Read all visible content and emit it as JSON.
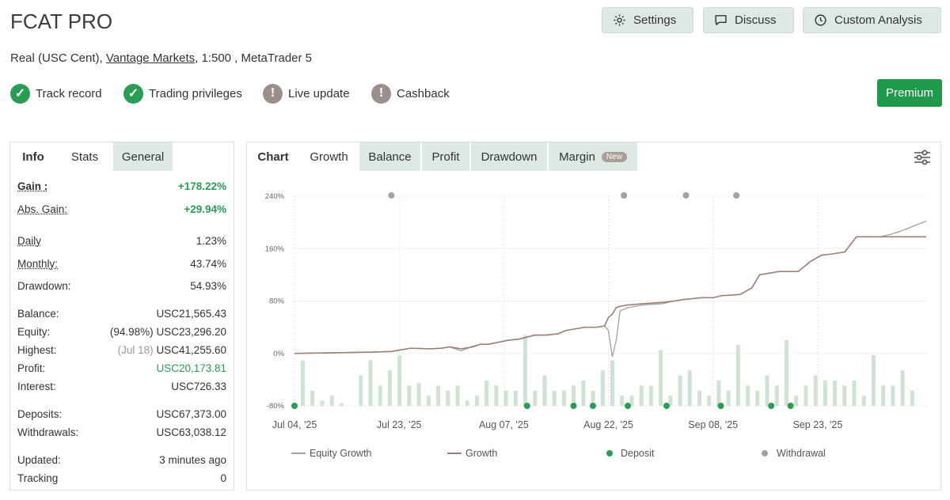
{
  "header": {
    "title": "FCAT PRO",
    "subtitle_pre": "Real (USC Cent), ",
    "broker": "Vantage Markets",
    "subtitle_post": ", 1:500 , MetaTrader 5"
  },
  "top_buttons": {
    "settings": "Settings",
    "discuss": "Discuss",
    "custom_analysis": "Custom Analysis"
  },
  "badges": {
    "track_record": "Track record",
    "trading_privileges": "Trading privileges",
    "live_update": "Live update",
    "cashback": "Cashback"
  },
  "premium": "Premium",
  "left_tabs": {
    "info": "Info",
    "stats": "Stats",
    "general": "General"
  },
  "stats": {
    "gain_label": "Gain :",
    "gain_value": "+178.22%",
    "abs_gain_label": "Abs. Gain:",
    "abs_gain_value": "+29.94%",
    "daily_label": "Daily",
    "daily_value": "1.23%",
    "monthly_label": "Monthly:",
    "monthly_value": "43.74%",
    "drawdown_label": "Drawdown:",
    "drawdown_value": "54.93%",
    "balance_label": "Balance:",
    "balance_value": "USC21,565.43",
    "equity_label": "Equity:",
    "equity_pct": "(94.98%)",
    "equity_value": "USC23,296.20",
    "highest_label": "Highest:",
    "highest_date": "(Jul 18)",
    "highest_value": "USC41,255.60",
    "profit_label": "Profit:",
    "profit_value": "USC20,173.81",
    "interest_label": "Interest:",
    "interest_value": "USC726.33",
    "deposits_label": "Deposits:",
    "deposits_value": "USC67,373.00",
    "withdrawals_label": "Withdrawals:",
    "withdrawals_value": "USC63,038.12",
    "updated_label": "Updated:",
    "updated_value": "3 minutes ago",
    "tracking_label": "Tracking",
    "tracking_value": "0"
  },
  "chart_tabs": {
    "chart": "Chart",
    "growth": "Growth",
    "balance": "Balance",
    "profit": "Profit",
    "drawdown": "Drawdown",
    "margin": "Margin",
    "new_badge": "New"
  },
  "chart_data": {
    "type": "line",
    "ylim": [
      -80,
      240
    ],
    "y_ticks": [
      "240%",
      "160%",
      "80%",
      "0%",
      "-80%"
    ],
    "x_ticks": [
      "Jul 04, '25",
      "Jul 23, '25",
      "Aug 07, '25",
      "Aug 22, '25",
      "Sep 08, '25",
      "Sep 23, '25"
    ],
    "grid": true,
    "legend_position": "bottom",
    "series": [
      {
        "name": "Equity Growth",
        "x": [
          0,
          10,
          20,
          25,
          30,
          35,
          38,
          40,
          43,
          46,
          48,
          50,
          55,
          58,
          60,
          62,
          65,
          68,
          70,
          75,
          78,
          80,
          81,
          82,
          83,
          84,
          86,
          88,
          90,
          95,
          98,
          100,
          105,
          108,
          110,
          115,
          118,
          120,
          125,
          128,
          130,
          133,
          136,
          139,
          142,
          145,
          148,
          151,
          154,
          157,
          160,
          163
        ],
        "y": [
          0,
          1,
          2,
          3,
          8,
          7,
          8,
          10,
          4,
          11,
          14,
          14,
          20,
          22,
          25,
          28,
          28,
          30,
          35,
          40,
          40,
          42,
          35,
          -5,
          20,
          65,
          70,
          72,
          74,
          76,
          80,
          82,
          85,
          85,
          88,
          90,
          100,
          120,
          125,
          125,
          125,
          140,
          150,
          152,
          155,
          178,
          178,
          178,
          182,
          188,
          195,
          202
        ]
      },
      {
        "name": "Growth",
        "x": [
          0,
          10,
          20,
          25,
          30,
          35,
          38,
          40,
          43,
          46,
          48,
          50,
          55,
          58,
          60,
          62,
          65,
          68,
          70,
          75,
          78,
          80,
          81,
          82,
          83,
          84,
          86,
          88,
          90,
          95,
          98,
          100,
          105,
          108,
          110,
          115,
          118,
          120,
          125,
          128,
          130,
          133,
          136,
          139,
          142,
          145,
          148,
          151,
          154,
          157,
          160,
          163
        ],
        "y": [
          0,
          1,
          2,
          3,
          8,
          7,
          8,
          10,
          7,
          10,
          14,
          14,
          20,
          22,
          25,
          28,
          28,
          30,
          35,
          40,
          40,
          42,
          55,
          60,
          70,
          72,
          74,
          75,
          76,
          78,
          80,
          82,
          85,
          85,
          88,
          90,
          100,
          120,
          125,
          125,
          125,
          140,
          150,
          152,
          155,
          178,
          178,
          178,
          178,
          178,
          178,
          178
        ]
      }
    ],
    "bars": [
      18,
      6,
      2,
      4,
      1,
      0,
      12,
      18,
      8,
      14,
      20,
      8,
      9,
      4,
      8,
      6,
      8,
      2,
      4,
      10,
      8,
      6,
      6,
      28,
      6,
      12,
      6,
      6,
      8,
      10,
      6,
      14,
      18,
      4,
      4,
      8,
      8,
      22,
      4,
      12,
      14,
      6,
      4,
      10,
      6,
      24,
      8,
      6,
      12,
      8,
      26,
      4,
      8,
      12,
      10,
      10,
      8,
      10,
      4,
      20,
      8,
      8,
      14,
      6
    ],
    "deposit_x": [
      0,
      60,
      72,
      77,
      86,
      96,
      110,
      123,
      128
    ],
    "withdrawal_x": [
      25,
      85,
      101,
      114
    ]
  },
  "legend": {
    "equity_growth": "Equity Growth",
    "growth": "Growth",
    "deposit": "Deposit",
    "withdrawal": "Withdrawal"
  },
  "colors": {
    "accent_green": "#2a9d54",
    "line_brown": "#9c7f76",
    "line_light": "#a99e98",
    "bar_green": "#cfe3d3",
    "button_bg": "#dfe9e3"
  }
}
